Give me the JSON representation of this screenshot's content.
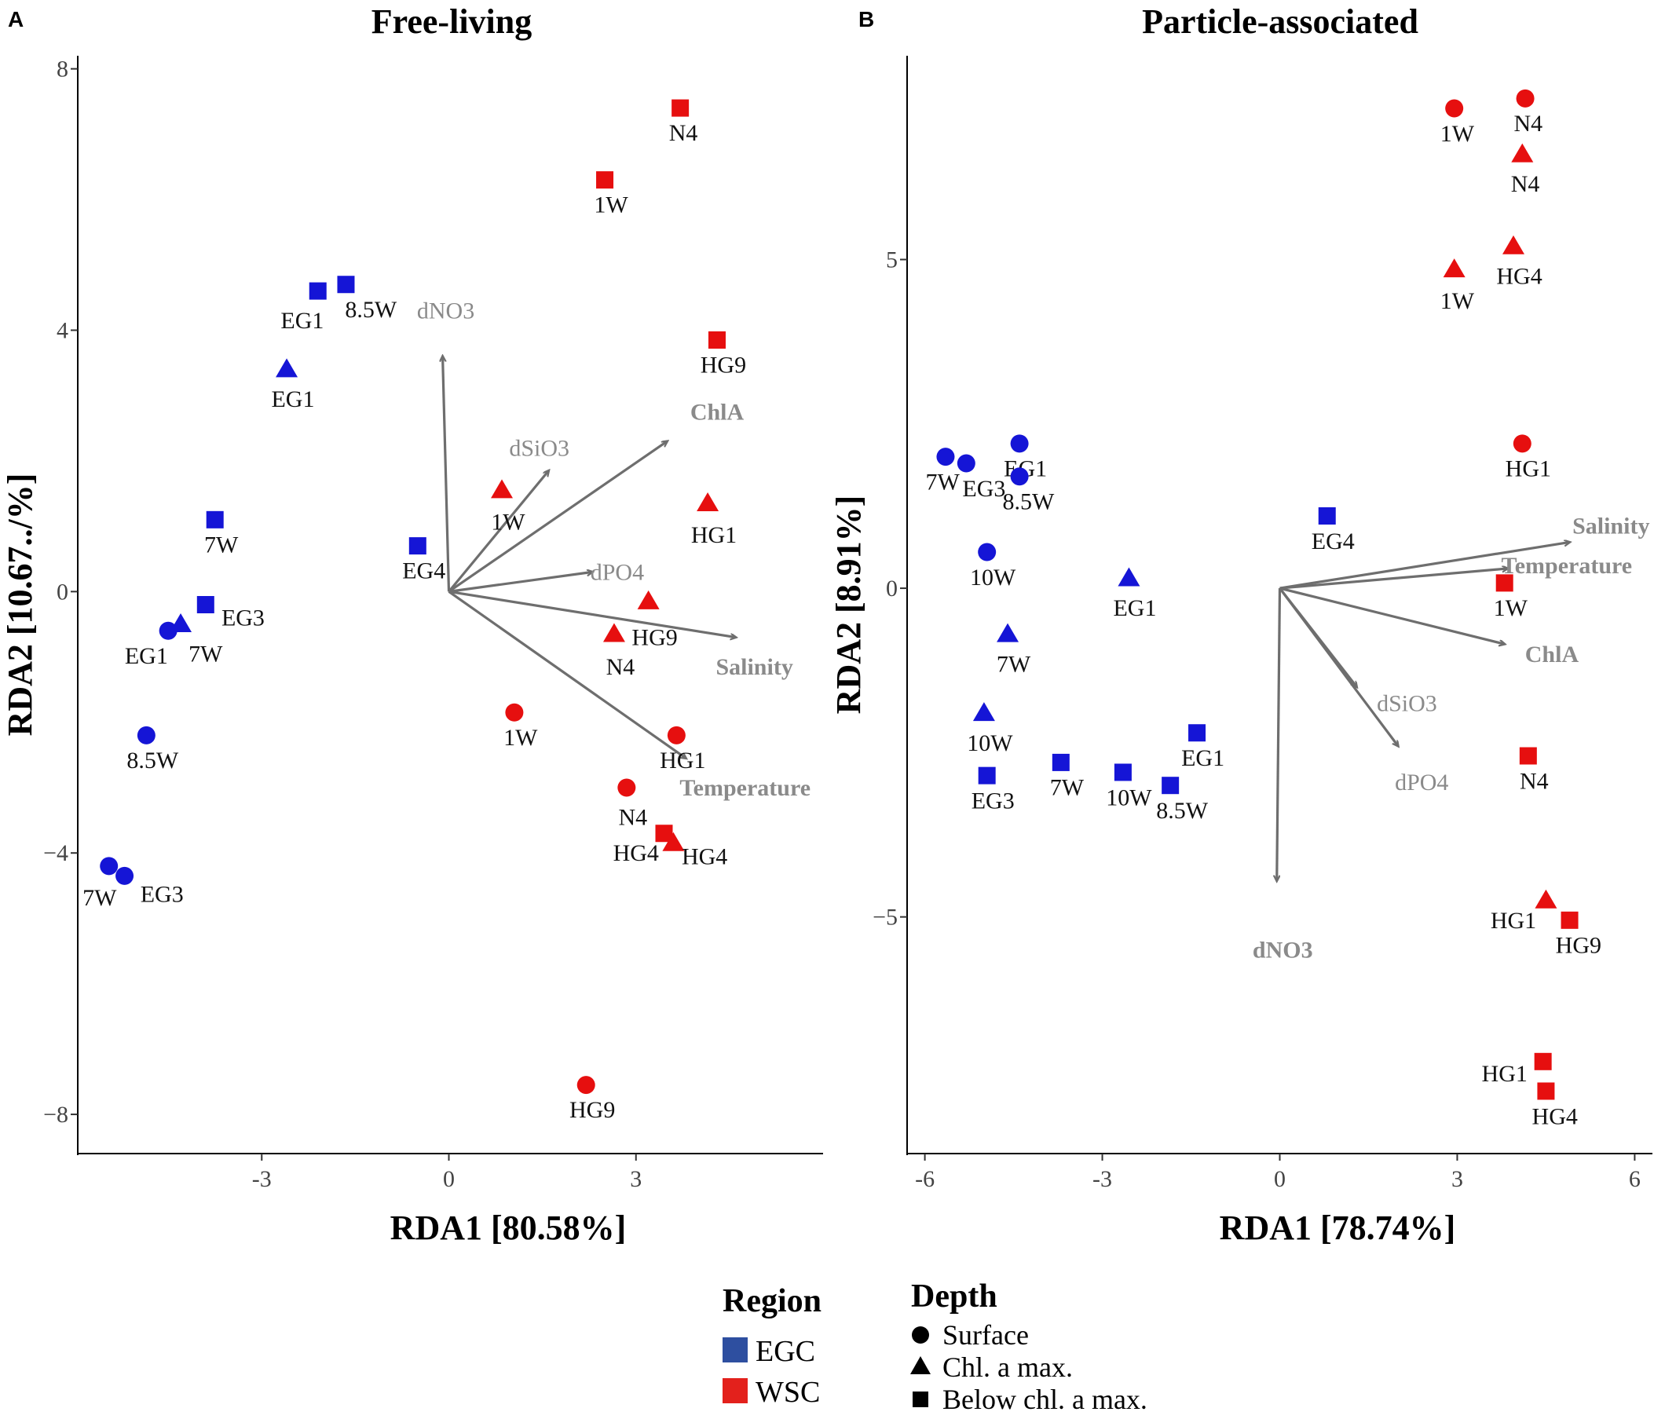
{
  "figure": {
    "legend": {
      "region_title": "Region",
      "regions": [
        {
          "label": "EGC",
          "color": "#2e4fa0"
        },
        {
          "label": "WSC",
          "color": "#e3211c"
        }
      ],
      "depth_title": "Depth",
      "depths": [
        {
          "label": "Surface",
          "shape": "circle"
        },
        {
          "label": "Chl. a max.",
          "shape": "triangle"
        },
        {
          "label": "Below chl. a max.",
          "shape": "square"
        }
      ]
    },
    "colors": {
      "EGC": "#1515d6",
      "WSC": "#e60f0f",
      "arrow": "#6e6e6e",
      "label_light": "#8a8a8a",
      "label_bold": "#8a8a8a"
    }
  },
  "chart_data": [
    {
      "type": "scatter",
      "panel_letter": "A",
      "title": "Free-living",
      "xlabel": "RDA1 [80.58%]",
      "ylabel": "RDA2 [10.67../%]",
      "xlim": [
        -5.95,
        6.0
      ],
      "ylim": [
        -8.6,
        8.2
      ],
      "xticks": [
        {
          "v": -3,
          "label": "-3"
        },
        {
          "v": 0,
          "label": "0"
        },
        {
          "v": 3,
          "label": "3"
        }
      ],
      "yticks": [
        {
          "v": 8,
          "label": "8"
        },
        {
          "v": 4,
          "label": "4"
        },
        {
          "v": 0,
          "label": "0"
        },
        {
          "v": -4,
          "label": "−4"
        },
        {
          "v": -8,
          "label": "−8"
        }
      ],
      "points": [
        {
          "x": 3.71,
          "y": 7.4,
          "region": "WSC",
          "depth": "square",
          "label": "N4",
          "ldx": 0.05,
          "ldy": -0.38
        },
        {
          "x": 2.5,
          "y": 6.3,
          "region": "WSC",
          "depth": "square",
          "label": "1W",
          "ldx": 0.1,
          "ldy": -0.38
        },
        {
          "x": -1.65,
          "y": 4.7,
          "region": "EGC",
          "depth": "square",
          "label": "8.5W",
          "ldx": 0.4,
          "ldy": -0.38
        },
        {
          "x": -2.1,
          "y": 4.6,
          "region": "EGC",
          "depth": "square",
          "label": "EG1",
          "ldx": -0.25,
          "ldy": -0.45
        },
        {
          "x": 4.3,
          "y": 3.85,
          "region": "WSC",
          "depth": "square",
          "label": "HG9",
          "ldx": 0.1,
          "ldy": -0.38
        },
        {
          "x": -2.6,
          "y": 3.4,
          "region": "EGC",
          "depth": "triangle",
          "label": "EG1",
          "ldx": 0.1,
          "ldy": -0.45
        },
        {
          "x": 0.85,
          "y": 1.55,
          "region": "WSC",
          "depth": "triangle",
          "label": "1W",
          "ldx": 0.1,
          "ldy": -0.48
        },
        {
          "x": 4.15,
          "y": 1.35,
          "region": "WSC",
          "depth": "triangle",
          "label": "HG1",
          "ldx": 0.1,
          "ldy": -0.48
        },
        {
          "x": -3.75,
          "y": 1.1,
          "region": "EGC",
          "depth": "square",
          "label": "7W",
          "ldx": 0.1,
          "ldy": -0.38
        },
        {
          "x": -0.5,
          "y": 0.7,
          "region": "EGC",
          "depth": "square",
          "label": "EG4",
          "ldx": 0.1,
          "ldy": -0.38
        },
        {
          "x": -3.9,
          "y": -0.2,
          "region": "EGC",
          "depth": "square",
          "label": "EG3",
          "ldx": 0.6,
          "ldy": -0.2
        },
        {
          "x": 3.2,
          "y": -0.15,
          "region": "WSC",
          "depth": "triangle",
          "label": "HG9",
          "ldx": 0.1,
          "ldy": -0.55
        },
        {
          "x": -4.3,
          "y": -0.5,
          "region": "EGC",
          "depth": "triangle",
          "label": "7W",
          "ldx": 0.4,
          "ldy": -0.45
        },
        {
          "x": -4.5,
          "y": -0.6,
          "region": "EGC",
          "depth": "circle",
          "label": "EG1",
          "ldx": -0.35,
          "ldy": -0.38
        },
        {
          "x": 2.65,
          "y": -0.65,
          "region": "WSC",
          "depth": "triangle",
          "label": "N4",
          "ldx": 0.1,
          "ldy": -0.5
        },
        {
          "x": 1.05,
          "y": -1.85,
          "region": "WSC",
          "depth": "circle",
          "label": "1W",
          "ldx": 0.1,
          "ldy": -0.38
        },
        {
          "x": -4.85,
          "y": -2.2,
          "region": "EGC",
          "depth": "circle",
          "label": "8.5W",
          "ldx": 0.1,
          "ldy": -0.38
        },
        {
          "x": 3.65,
          "y": -2.2,
          "region": "WSC",
          "depth": "circle",
          "label": "HG1",
          "ldx": 0.1,
          "ldy": -0.38
        },
        {
          "x": 2.85,
          "y": -3.0,
          "region": "WSC",
          "depth": "circle",
          "label": "N4",
          "ldx": 0.1,
          "ldy": -0.45
        },
        {
          "x": 3.45,
          "y": -3.7,
          "region": "WSC",
          "depth": "square",
          "label": "HG4",
          "ldx": -0.45,
          "ldy": -0.3
        },
        {
          "x": 3.6,
          "y": -3.85,
          "region": "WSC",
          "depth": "triangle",
          "label": "HG4",
          "ldx": 0.5,
          "ldy": -0.2
        },
        {
          "x": -5.45,
          "y": -4.2,
          "region": "EGC",
          "depth": "circle",
          "label": "7W",
          "ldx": -0.15,
          "ldy": -0.48
        },
        {
          "x": -5.2,
          "y": -4.35,
          "region": "EGC",
          "depth": "circle",
          "label": "EG3",
          "ldx": 0.6,
          "ldy": -0.28
        },
        {
          "x": 2.2,
          "y": -7.55,
          "region": "WSC",
          "depth": "circle",
          "label": "HG9",
          "ldx": 0.1,
          "ldy": -0.38
        }
      ],
      "vectors": [
        {
          "name": "dNO3",
          "x": -0.1,
          "y": 3.6,
          "lx": -0.05,
          "ly": 4.3,
          "bold": false
        },
        {
          "name": "ChlA",
          "x": 3.5,
          "y": 2.3,
          "lx": 4.3,
          "ly": 2.75,
          "bold": true
        },
        {
          "name": "dSiO3",
          "x": 1.6,
          "y": 1.85,
          "lx": 1.45,
          "ly": 2.2,
          "bold": false
        },
        {
          "name": "dPO4",
          "x": 2.3,
          "y": 0.3,
          "lx": 2.7,
          "ly": 0.3,
          "bold": false
        },
        {
          "name": "Salinity",
          "x": 4.6,
          "y": -0.7,
          "lx": 4.9,
          "ly": -1.15,
          "bold": true
        },
        {
          "name": "Temperature",
          "x": 3.8,
          "y": -2.55,
          "lx": 4.75,
          "ly": -3.0,
          "bold": true
        }
      ]
    },
    {
      "type": "scatter",
      "panel_letter": "B",
      "title": "Particle-associated",
      "xlabel": "RDA1 [78.74%]",
      "ylabel": "RDA2 [8.91%]",
      "xlim": [
        -6.3,
        6.3
      ],
      "ylim": [
        -8.6,
        8.1
      ],
      "xticks": [
        {
          "v": -6,
          "label": "-6"
        },
        {
          "v": -3,
          "label": "-3"
        },
        {
          "v": 0,
          "label": "0"
        },
        {
          "v": 3,
          "label": "3"
        },
        {
          "v": 6,
          "label": "6"
        }
      ],
      "yticks": [
        {
          "v": 5,
          "label": "5"
        },
        {
          "v": 0,
          "label": "0"
        },
        {
          "v": -5,
          "label": "−5"
        }
      ],
      "points": [
        {
          "x": 4.15,
          "y": 7.45,
          "region": "WSC",
          "depth": "circle",
          "label": "N4",
          "ldx": 0.05,
          "ldy": -0.38
        },
        {
          "x": 2.95,
          "y": 7.3,
          "region": "WSC",
          "depth": "circle",
          "label": "1W",
          "ldx": 0.05,
          "ldy": -0.38
        },
        {
          "x": 4.1,
          "y": 6.6,
          "region": "WSC",
          "depth": "triangle",
          "label": "N4",
          "ldx": 0.05,
          "ldy": -0.45
        },
        {
          "x": 3.95,
          "y": 5.2,
          "region": "WSC",
          "depth": "triangle",
          "label": "HG4",
          "ldx": 0.1,
          "ldy": -0.45
        },
        {
          "x": 2.95,
          "y": 4.85,
          "region": "WSC",
          "depth": "triangle",
          "label": "1W",
          "ldx": 0.05,
          "ldy": -0.48
        },
        {
          "x": -5.65,
          "y": 2.0,
          "region": "EGC",
          "depth": "circle",
          "label": "7W",
          "ldx": -0.05,
          "ldy": -0.38
        },
        {
          "x": -5.3,
          "y": 1.9,
          "region": "EGC",
          "depth": "circle",
          "label": "EG3",
          "ldx": 0.3,
          "ldy": -0.38
        },
        {
          "x": -4.4,
          "y": 2.2,
          "region": "EGC",
          "depth": "circle",
          "label": "EG1",
          "ldx": 0.1,
          "ldy": -0.38
        },
        {
          "x": -4.4,
          "y": 1.7,
          "region": "EGC",
          "depth": "circle",
          "label": "8.5W",
          "ldx": 0.15,
          "ldy": -0.38
        },
        {
          "x": 4.1,
          "y": 2.2,
          "region": "WSC",
          "depth": "circle",
          "label": "HG1",
          "ldx": 0.1,
          "ldy": -0.38
        },
        {
          "x": 0.8,
          "y": 1.1,
          "region": "EGC",
          "depth": "square",
          "label": "EG4",
          "ldx": 0.1,
          "ldy": -0.38
        },
        {
          "x": -4.95,
          "y": 0.55,
          "region": "EGC",
          "depth": "circle",
          "label": "10W",
          "ldx": 0.1,
          "ldy": -0.38
        },
        {
          "x": -2.55,
          "y": 0.15,
          "region": "EGC",
          "depth": "triangle",
          "label": "EG1",
          "ldx": 0.1,
          "ldy": -0.45
        },
        {
          "x": 3.8,
          "y": 0.08,
          "region": "WSC",
          "depth": "square",
          "label": "1W",
          "ldx": 0.1,
          "ldy": -0.38
        },
        {
          "x": -4.6,
          "y": -0.7,
          "region": "EGC",
          "depth": "triangle",
          "label": "7W",
          "ldx": 0.1,
          "ldy": -0.45
        },
        {
          "x": -5.0,
          "y": -1.9,
          "region": "EGC",
          "depth": "triangle",
          "label": "10W",
          "ldx": 0.1,
          "ldy": -0.45
        },
        {
          "x": -1.4,
          "y": -2.2,
          "region": "EGC",
          "depth": "square",
          "label": "EG1",
          "ldx": 0.1,
          "ldy": -0.38
        },
        {
          "x": -3.7,
          "y": -2.65,
          "region": "EGC",
          "depth": "square",
          "label": "7W",
          "ldx": 0.1,
          "ldy": -0.38
        },
        {
          "x": -4.95,
          "y": -2.85,
          "region": "EGC",
          "depth": "square",
          "label": "EG3",
          "ldx": 0.1,
          "ldy": -0.38
        },
        {
          "x": -2.65,
          "y": -2.8,
          "region": "EGC",
          "depth": "square",
          "label": "10W",
          "ldx": 0.1,
          "ldy": -0.38
        },
        {
          "x": -1.85,
          "y": -3.0,
          "region": "EGC",
          "depth": "square",
          "label": "8.5W",
          "ldx": 0.2,
          "ldy": -0.38
        },
        {
          "x": 4.2,
          "y": -2.55,
          "region": "WSC",
          "depth": "square",
          "label": "N4",
          "ldx": 0.1,
          "ldy": -0.38
        },
        {
          "x": 4.5,
          "y": -4.75,
          "region": "WSC",
          "depth": "triangle",
          "label": "HG1",
          "ldx": -0.55,
          "ldy": -0.3
        },
        {
          "x": 4.9,
          "y": -5.05,
          "region": "WSC",
          "depth": "square",
          "label": "HG9",
          "ldx": 0.15,
          "ldy": -0.38
        },
        {
          "x": 4.45,
          "y": -7.2,
          "region": "WSC",
          "depth": "square",
          "label": "HG1",
          "ldx": -0.65,
          "ldy": -0.18
        },
        {
          "x": 4.5,
          "y": -7.65,
          "region": "WSC",
          "depth": "square",
          "label": "HG4",
          "ldx": 0.15,
          "ldy": -0.38
        }
      ],
      "vectors": [
        {
          "name": "Salinity",
          "x": 4.9,
          "y": 0.7,
          "lx": 5.6,
          "ly": 0.95,
          "bold": true
        },
        {
          "name": "Temperature",
          "x": 3.85,
          "y": 0.3,
          "lx": 4.85,
          "ly": 0.35,
          "bold": true
        },
        {
          "name": "ChlA",
          "x": 3.8,
          "y": -0.85,
          "lx": 4.6,
          "ly": -1.0,
          "bold": true
        },
        {
          "name": "dSiO3",
          "x": 1.3,
          "y": -1.5,
          "lx": 2.15,
          "ly": -1.75,
          "bold": false
        },
        {
          "name": "dPO4",
          "x": 2.0,
          "y": -2.4,
          "lx": 2.4,
          "ly": -2.95,
          "bold": false
        },
        {
          "name": "dNO3",
          "x": -0.05,
          "y": -4.45,
          "lx": 0.05,
          "ly": -5.5,
          "bold": true
        }
      ]
    }
  ]
}
